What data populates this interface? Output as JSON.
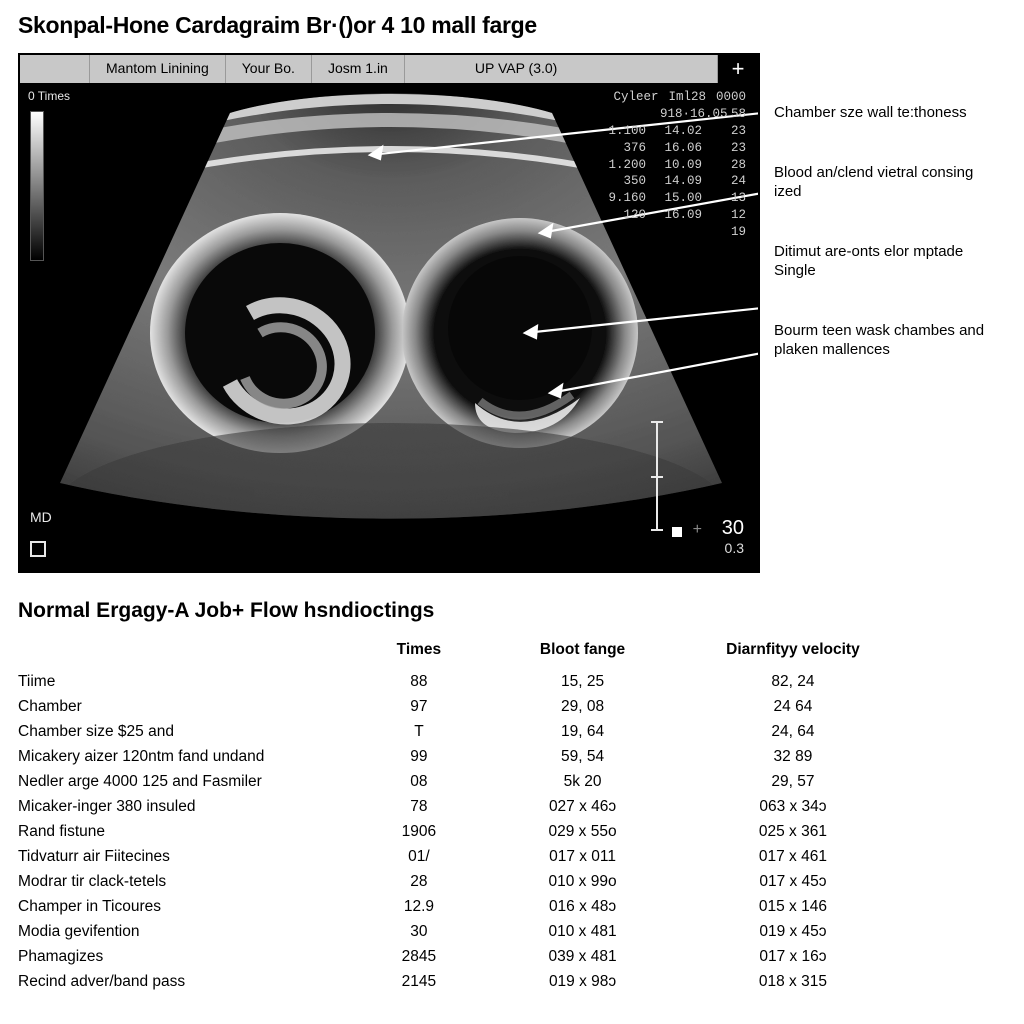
{
  "title": "Skonpal-Hone Cardagraim Br·()or 4 10 mall farge",
  "ultrasound": {
    "tabs": [
      "Mantom Linining",
      "Your Bo.",
      "Josm 1.in",
      "UP VAP (3.0)"
    ],
    "plus": "+",
    "times_label": "0 Times",
    "md_label": "MD",
    "readout_header": [
      "Cyleer",
      "Iml28",
      "0000"
    ],
    "readout_rows": [
      [
        "",
        "918·16.05",
        "58"
      ],
      [
        "1.100",
        "14.02",
        "23"
      ],
      [
        "376",
        "16.06",
        "23"
      ],
      [
        "1.200",
        "10.09",
        "28"
      ],
      [
        "350",
        "14.09",
        "24"
      ],
      [
        "9.160",
        "15.00",
        "13"
      ],
      [
        "120",
        "16.09",
        "12"
      ],
      [
        "",
        "",
        "19"
      ]
    ],
    "scale_main": "30",
    "scale_sub": "0.3",
    "colors": {
      "frame_bg": "#000000",
      "tab_bg": "#c8c8c8",
      "tissue_light": "#bdbdbd",
      "tissue_mid": "#6f6f6f",
      "tissue_dark": "#2a2a2a",
      "arrow": "#ffffff"
    }
  },
  "callouts": [
    "Chamber sze wall te:thoness",
    "Blood an/clend vietral consing ized",
    "Ditimut are-onts elor mptade Single",
    "Bourm teen wask chambes and plaken mallences"
  ],
  "table": {
    "title": "Normal Ergagy-A Job+ Flow hsndioctings",
    "columns": [
      "",
      "Times",
      "Bloot fange",
      "Diarnfityy velocity"
    ],
    "rows": [
      [
        "Tiime",
        "88",
        "15, 25",
        "82, 24"
      ],
      [
        "Chamber",
        "97",
        "29, 08",
        "24 64"
      ],
      [
        "Chamber size $25 and",
        "T",
        "19, 64",
        "24, 64"
      ],
      [
        "Micakery aizer 120ntm fand undand",
        "99",
        "59, 54",
        "32 89"
      ],
      [
        "Nedler arge 4000 125 and Fasmiler",
        "08",
        "5k 20",
        "29, 57"
      ],
      [
        "Micaker-inger 380 insuled",
        "78",
        "027 x 46ɔ",
        "063 x 34ɔ"
      ],
      [
        "Rand fistune",
        "1906",
        "029 x 55o",
        "025 x 361"
      ],
      [
        "Tidvaturr air Fiitecines",
        "01/",
        "017 x 011",
        "017 x 461"
      ],
      [
        "Modrar tir clack-tetels",
        "28",
        "010 x 99o",
        "017 x 45ɔ"
      ],
      [
        "Champer in Ticoures",
        "12.9",
        "016 x 48ɔ",
        "015 x 146"
      ],
      [
        "Modia gevifention",
        "30",
        "010 x 481",
        "019 x 45ɔ"
      ],
      [
        "Phamagizes",
        "2845",
        "039 x 481",
        "017 x 16ɔ"
      ],
      [
        "Recind adver/band pass",
        "2145",
        "019 x 98ɔ",
        "018 x 315"
      ]
    ]
  }
}
